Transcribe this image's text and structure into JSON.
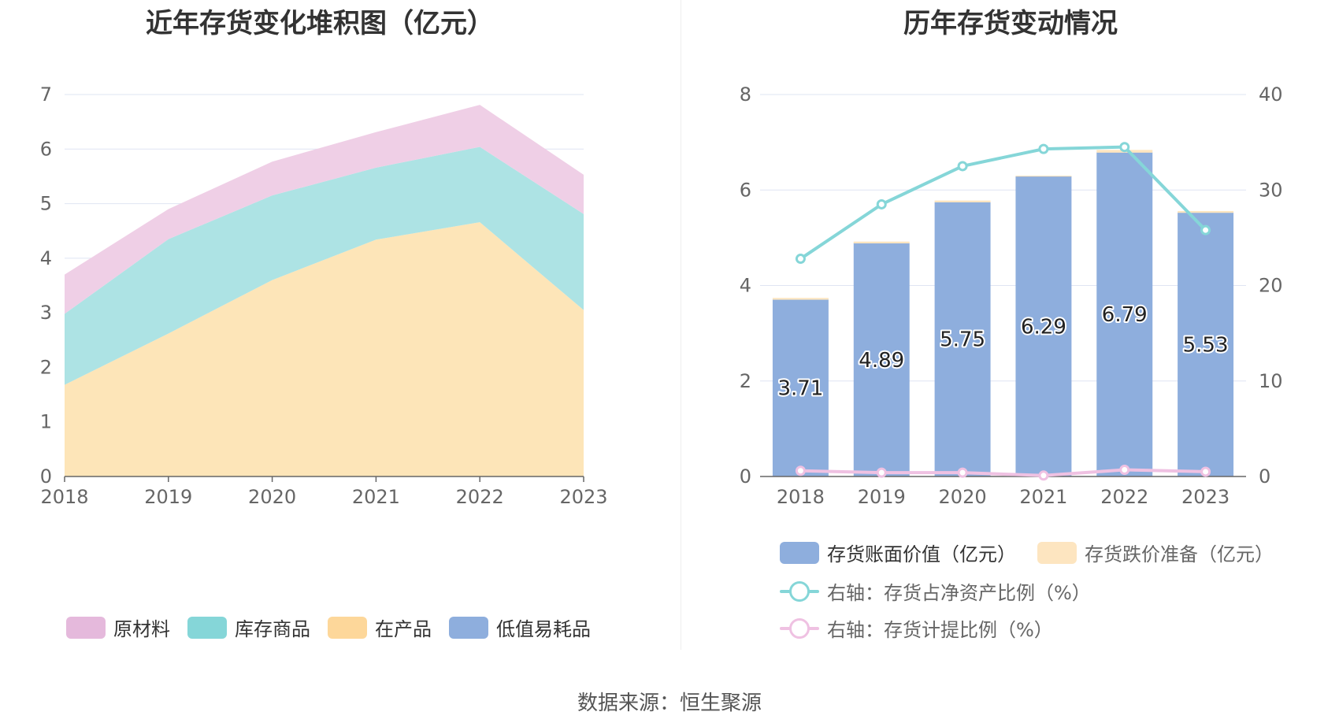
{
  "left_chart": {
    "title": "近年存货变化堆积图（亿元）",
    "legend": [
      {
        "label": "原材料",
        "color": "#e5b9dc"
      },
      {
        "label": "库存商品",
        "color": "#85d6d8"
      },
      {
        "label": "在产品",
        "color": "#fdd79a"
      },
      {
        "label": "低值易耗品",
        "color": "#8eaedd"
      }
    ]
  },
  "right_chart": {
    "title": "历年存货变动情况",
    "legend": [
      {
        "label": "存货账面价值（亿元）",
        "color": "#8eaedd"
      },
      {
        "label": "存货跌价准备（亿元）",
        "color": "#fde5c0"
      },
      {
        "label": "右轴：存货占净资产比例（%）",
        "color": "#85d6d8"
      },
      {
        "label": "右轴：存货计提比例（%）",
        "color": "#efc1e2"
      }
    ]
  },
  "source": "数据来源：恒生聚源",
  "chart_data": [
    {
      "type": "area",
      "stacked": true,
      "title": "近年存货变化堆积图（亿元）",
      "categories": [
        "2018",
        "2019",
        "2020",
        "2021",
        "2022",
        "2023"
      ],
      "ylim": [
        0,
        7
      ],
      "yticks": [
        "0",
        "1",
        "2",
        "3",
        "4",
        "5",
        "6",
        "7"
      ],
      "grid": true,
      "legend_position": "bottom",
      "series": [
        {
          "name": "在产品",
          "color": "#fde5b8",
          "values": [
            1.68,
            2.62,
            3.6,
            4.34,
            4.66,
            3.05
          ]
        },
        {
          "name": "库存商品",
          "color": "#ade3e4",
          "values": [
            1.3,
            1.73,
            1.55,
            1.32,
            1.38,
            1.76
          ]
        },
        {
          "name": "原材料",
          "color": "#efcfe6",
          "values": [
            0.72,
            0.55,
            0.62,
            0.65,
            0.77,
            0.72
          ]
        },
        {
          "name": "低值易耗品",
          "color": "#8eaedd",
          "values": [
            0,
            0,
            0,
            0,
            0,
            0
          ]
        }
      ]
    },
    {
      "type": "bar",
      "title": "历年存货变动情况",
      "categories": [
        "2018",
        "2019",
        "2020",
        "2021",
        "2022",
        "2023"
      ],
      "ylim": [
        0,
        8
      ],
      "yticks": [
        "0",
        "2",
        "4",
        "6",
        "8"
      ],
      "y2lim": [
        0,
        40
      ],
      "y2ticks": [
        "0",
        "10",
        "20",
        "30",
        "40"
      ],
      "grid": true,
      "legend_position": "bottom",
      "series": [
        {
          "name": "存货账面价值（亿元）",
          "type": "bar",
          "color": "#8eaedd",
          "values": [
            3.71,
            4.89,
            5.75,
            6.29,
            6.79,
            5.53
          ],
          "labels": [
            "3.71",
            "4.89",
            "5.75",
            "6.29",
            "6.79",
            "5.53"
          ]
        },
        {
          "name": "存货跌价准备（亿元）",
          "type": "bar",
          "stacked": true,
          "color": "#fde5c0",
          "values": [
            0.03,
            0.03,
            0.03,
            0.01,
            0.05,
            0.03
          ]
        },
        {
          "name": "右轴：存货占净资产比例（%）",
          "type": "line",
          "axis": "right",
          "color": "#85d6d8",
          "values": [
            22.8,
            28.5,
            32.5,
            34.3,
            34.5,
            25.8
          ]
        },
        {
          "name": "右轴：存货计提比例（%）",
          "type": "line",
          "axis": "right",
          "color": "#efc1e2",
          "values": [
            0.6,
            0.4,
            0.4,
            0.1,
            0.7,
            0.5
          ]
        }
      ]
    }
  ]
}
